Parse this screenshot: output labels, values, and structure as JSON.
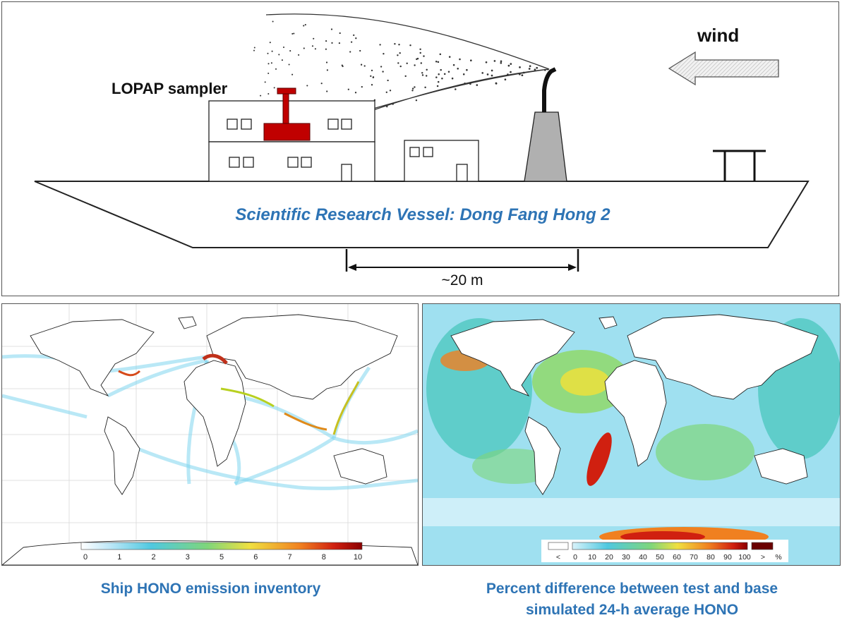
{
  "ship_diagram": {
    "sampler_label": "LOPAP sampler",
    "wind_label": "wind",
    "vessel_label": "Scientific Research Vessel: Dong Fang Hong 2",
    "scale_label": "~20 m"
  },
  "emission_map": {
    "caption": "Ship HONO emission inventory",
    "colorbar_ticks": [
      "0",
      "1",
      "2",
      "3",
      "5",
      "6",
      "7",
      "8",
      "10"
    ]
  },
  "difference_map": {
    "caption_line1": "Percent difference between test and base",
    "caption_line2": "simulated 24-h average HONO",
    "colorbar_ticks": [
      "<",
      "0",
      "10",
      "20",
      "30",
      "40",
      "50",
      "60",
      "70",
      "80",
      "90",
      "100",
      ">",
      "%"
    ]
  },
  "colors": {
    "caption_blue": "#2e74b5",
    "sampler_red": "#c00000",
    "stack_gray": "#b0b0b0"
  }
}
